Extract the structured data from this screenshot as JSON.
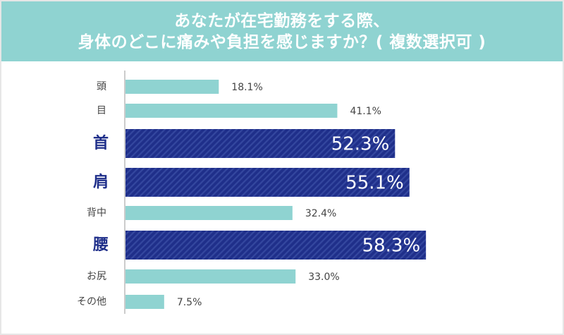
{
  "header": {
    "title_line1": "あなたが在宅勤務をする際、",
    "title_line2": "身体のどこに痛みや負担を感じますか？( 複数選択可 )"
  },
  "colors": {
    "header_bg": "#8fd3d1",
    "bar_normal": "#8fd3d1",
    "bar_highlight": "#1f2f8a",
    "label_highlight": "#1f2f8a",
    "label_normal": "#444444"
  },
  "chart_data": {
    "type": "bar",
    "orientation": "horizontal",
    "categories": [
      "頭",
      "目",
      "首",
      "肩",
      "背中",
      "腰",
      "お尻",
      "その他"
    ],
    "values": [
      18.1,
      41.1,
      52.3,
      55.1,
      32.4,
      58.3,
      33.0,
      7.5
    ],
    "value_labels": [
      "18.1%",
      "41.1%",
      "52.3%",
      "55.1%",
      "32.4%",
      "58.3%",
      "33.0%",
      "7.5%"
    ],
    "highlighted": [
      false,
      false,
      true,
      true,
      false,
      true,
      false,
      false
    ],
    "xlim": [
      0,
      100
    ],
    "grid": false,
    "legend": "none"
  }
}
